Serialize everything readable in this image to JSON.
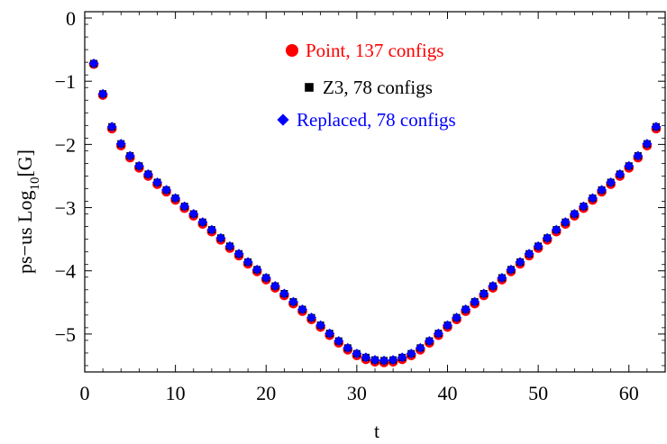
{
  "chart_data": {
    "type": "scatter",
    "xlabel": "t",
    "ylabel": {
      "prefix": "ps−us Log",
      "subscript": "10",
      "suffix": "[G]"
    },
    "xlim": [
      0,
      64
    ],
    "ylim": [
      -5.6,
      0.1
    ],
    "xticks": [
      0,
      10,
      20,
      30,
      40,
      50,
      60
    ],
    "yticks": [
      0,
      -1,
      -2,
      -3,
      -4,
      -5
    ],
    "x_tick_labels": [
      "0",
      "10",
      "20",
      "30",
      "40",
      "50",
      "60"
    ],
    "y_tick_labels": [
      "0",
      "−1",
      "−2",
      "−3",
      "−4",
      "−5"
    ],
    "frame": "box",
    "grid": false,
    "legend_position": "top-center",
    "x": [
      1,
      2,
      3,
      4,
      5,
      6,
      7,
      8,
      9,
      10,
      11,
      12,
      13,
      14,
      15,
      16,
      17,
      18,
      19,
      20,
      21,
      22,
      23,
      24,
      25,
      26,
      27,
      28,
      29,
      30,
      31,
      32,
      33,
      34,
      35,
      36,
      37,
      38,
      39,
      40,
      41,
      42,
      43,
      44,
      45,
      46,
      47,
      48,
      49,
      50,
      51,
      52,
      53,
      54,
      55,
      56,
      57,
      58,
      59,
      60,
      61,
      62,
      63
    ],
    "series": [
      {
        "name": "Point, 137 configs",
        "color": "#ff0000",
        "marker": "circle",
        "values": [
          -0.73,
          -1.22,
          -1.75,
          -2.02,
          -2.21,
          -2.37,
          -2.5,
          -2.63,
          -2.75,
          -2.88,
          -3.01,
          -3.13,
          -3.26,
          -3.38,
          -3.51,
          -3.64,
          -3.76,
          -3.89,
          -4.01,
          -4.14,
          -4.27,
          -4.39,
          -4.52,
          -4.64,
          -4.77,
          -4.89,
          -5.02,
          -5.14,
          -5.25,
          -5.34,
          -5.4,
          -5.44,
          -5.45,
          -5.44,
          -5.4,
          -5.34,
          -5.25,
          -5.14,
          -5.02,
          -4.89,
          -4.77,
          -4.64,
          -4.52,
          -4.39,
          -4.27,
          -4.14,
          -4.01,
          -3.89,
          -3.76,
          -3.64,
          -3.51,
          -3.38,
          -3.26,
          -3.13,
          -3.01,
          -2.88,
          -2.75,
          -2.63,
          -2.5,
          -2.37,
          -2.21,
          -2.02,
          -1.75
        ]
      },
      {
        "name": "Z3, 78 configs",
        "color": "#000000",
        "marker": "square",
        "values": [
          -0.72,
          -1.2,
          -1.72,
          -1.99,
          -2.18,
          -2.34,
          -2.47,
          -2.6,
          -2.72,
          -2.85,
          -2.98,
          -3.1,
          -3.23,
          -3.35,
          -3.48,
          -3.61,
          -3.73,
          -3.86,
          -3.98,
          -4.11,
          -4.24,
          -4.36,
          -4.49,
          -4.61,
          -4.74,
          -4.86,
          -4.99,
          -5.11,
          -5.22,
          -5.31,
          -5.37,
          -5.41,
          -5.42,
          -5.41,
          -5.37,
          -5.31,
          -5.22,
          -5.11,
          -4.99,
          -4.86,
          -4.74,
          -4.61,
          -4.49,
          -4.36,
          -4.24,
          -4.11,
          -3.98,
          -3.86,
          -3.73,
          -3.61,
          -3.48,
          -3.35,
          -3.23,
          -3.1,
          -2.98,
          -2.85,
          -2.72,
          -2.6,
          -2.47,
          -2.34,
          -2.18,
          -1.99,
          -1.72
        ]
      },
      {
        "name": "Replaced, 78 configs",
        "color": "#0000ff",
        "marker": "diamond",
        "values": [
          -0.72,
          -1.2,
          -1.72,
          -1.99,
          -2.18,
          -2.34,
          -2.47,
          -2.6,
          -2.72,
          -2.85,
          -2.98,
          -3.1,
          -3.23,
          -3.35,
          -3.48,
          -3.61,
          -3.73,
          -3.86,
          -3.98,
          -4.11,
          -4.24,
          -4.36,
          -4.49,
          -4.61,
          -4.74,
          -4.86,
          -4.99,
          -5.11,
          -5.22,
          -5.31,
          -5.37,
          -5.41,
          -5.42,
          -5.41,
          -5.37,
          -5.31,
          -5.22,
          -5.11,
          -4.99,
          -4.86,
          -4.74,
          -4.61,
          -4.49,
          -4.36,
          -4.24,
          -4.11,
          -3.98,
          -3.86,
          -3.73,
          -3.61,
          -3.48,
          -3.35,
          -3.23,
          -3.1,
          -2.98,
          -2.85,
          -2.72,
          -2.6,
          -2.47,
          -2.34,
          -2.18,
          -1.99,
          -1.72
        ]
      }
    ]
  }
}
